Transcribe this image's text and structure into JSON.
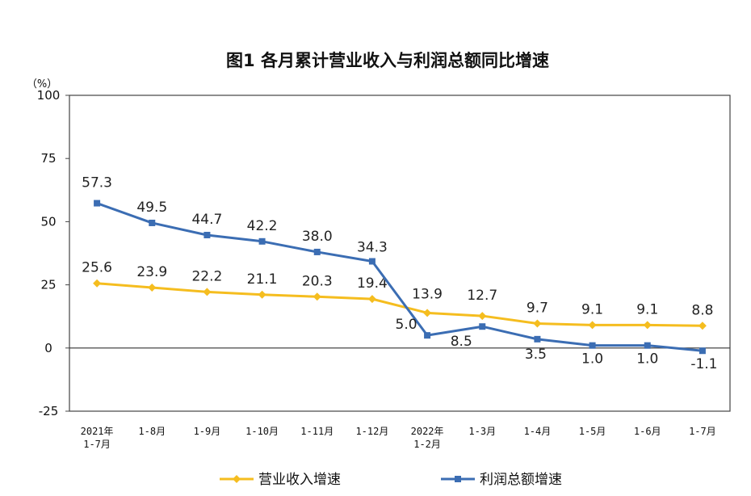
{
  "chart_data": {
    "type": "line",
    "title": "图1  各月累计营业收入与利润总额同比增速",
    "unit": "（%）",
    "ylim": [
      -25,
      100
    ],
    "yticks": [
      "100",
      "75",
      "50",
      "25",
      "0",
      "-25"
    ],
    "ytick_values": [
      100,
      75,
      50,
      25,
      0,
      -25
    ],
    "categories": [
      [
        "2021年",
        "1-7月"
      ],
      [
        "1-8月"
      ],
      [
        "1-9月"
      ],
      [
        "1-10月"
      ],
      [
        "1-11月"
      ],
      [
        "1-12月"
      ],
      [
        "2022年",
        "1-2月"
      ],
      [
        "1-3月"
      ],
      [
        "1-4月"
      ],
      [
        "1-5月"
      ],
      [
        "1-6月"
      ],
      [
        "1-7月"
      ]
    ],
    "series": [
      {
        "name": "营业收入增速",
        "color": "#F5BD1F",
        "values": [
          25.6,
          23.9,
          22.2,
          21.1,
          20.3,
          19.4,
          13.9,
          12.7,
          9.7,
          9.1,
          9.1,
          8.8
        ],
        "labels": [
          "25.6",
          "23.9",
          "22.2",
          "21.1",
          "20.3",
          "19.4",
          "13.9",
          "12.7",
          "9.7",
          "9.1",
          "9.1",
          "8.8"
        ]
      },
      {
        "name": "利润总额增速",
        "color": "#3B6DB3",
        "values": [
          57.3,
          49.5,
          44.7,
          42.2,
          38.0,
          34.3,
          5.0,
          8.5,
          3.5,
          1.0,
          1.0,
          -1.1
        ],
        "labels": [
          "57.3",
          "49.5",
          "44.7",
          "42.2",
          "38.0",
          "34.3",
          "5.0",
          "8.5",
          "3.5",
          "1.0",
          "1.0",
          "-1.1"
        ]
      }
    ],
    "legend_position": "bottom",
    "grid": false
  }
}
